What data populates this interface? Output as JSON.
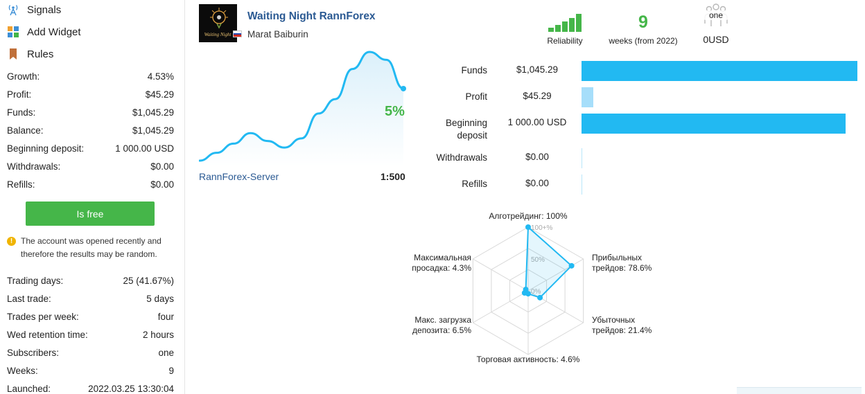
{
  "nav": [
    {
      "label": "Signals",
      "icon": "signal-antenna-icon"
    },
    {
      "label": "Add Widget",
      "icon": "widget-grid-icon"
    },
    {
      "label": "Rules",
      "icon": "bookmark-icon"
    }
  ],
  "stats_top": [
    {
      "label": "Growth:",
      "value": "4.53%"
    },
    {
      "label": "Profit:",
      "value": "$45.29"
    },
    {
      "label": "Funds:",
      "value": "$1,045.29"
    },
    {
      "label": "Balance:",
      "value": "$1,045.29"
    },
    {
      "label": "Beginning deposit:",
      "value": "1 000.00 USD"
    },
    {
      "label": "Withdrawals:",
      "value": "$0.00"
    },
    {
      "label": "Refills:",
      "value": "$0.00"
    }
  ],
  "free_button": "Is free",
  "warning": {
    "icon": "warning-icon",
    "text": "The account was opened recently and therefore the results may be random."
  },
  "stats_bottom": [
    {
      "label": "Trading days:",
      "value": "25 (41.67%)"
    },
    {
      "label": "Last trade:",
      "value": "5 days"
    },
    {
      "label": "Trades per week:",
      "value": "four"
    },
    {
      "label": "Wed retention time:",
      "value": "2 hours"
    },
    {
      "label": "Subscribers:",
      "value": "one"
    },
    {
      "label": "Weeks:",
      "value": "9"
    },
    {
      "label": "Launched:",
      "value": "2022.03.25 13:30:04"
    }
  ],
  "signal": {
    "title": "Waiting Night RannForex",
    "author": "Marat Baiburin",
    "avatar_text": "Waiting Night",
    "server": "RannForex-Server",
    "leverage": "1:500",
    "growth_label": "5%"
  },
  "metrics": {
    "reliability_label": "Reliability",
    "reliability_level": 5,
    "weeks_value": "9",
    "weeks_caption": "weeks (from 2022)",
    "subscribers_value": "one",
    "subscribers_caption": "0USD"
  },
  "growth_curve": [
    0,
    6,
    13,
    21,
    15,
    10,
    17,
    36,
    47,
    70,
    83,
    77,
    55
  ],
  "funds_bars": [
    {
      "label": "Funds",
      "value": "$1,045.29",
      "fraction": 1.0,
      "color": "#22b9f2"
    },
    {
      "label": "Profit",
      "value": "$45.29",
      "fraction": 0.043,
      "color": "#a6defa"
    },
    {
      "label": "Beginning deposit",
      "value": "1 000.00 USD",
      "fraction": 0.957,
      "color": "#22b9f2"
    },
    {
      "label": "Withdrawals",
      "value": "$0.00",
      "fraction": 0,
      "color": "#22b9f2"
    },
    {
      "label": "Refills",
      "value": "$0.00",
      "fraction": 0,
      "color": "#22b9f2"
    }
  ],
  "radar": {
    "grid_labels": [
      "100+%",
      "50%",
      "0%"
    ],
    "axes": [
      {
        "label": [
          "Алготрейдинг: 100%"
        ],
        "value": 100
      },
      {
        "label": [
          "Прибыльных",
          "трейдов: 78.6%"
        ],
        "value": 78.6
      },
      {
        "label": [
          "Убыточных",
          "трейдов: 21.4%"
        ],
        "value": 21.4
      },
      {
        "label": [
          "Торговая активность: 4.6%"
        ],
        "value": 4.6
      },
      {
        "label": [
          "Макс. загрузка",
          "депозита: 6.5%"
        ],
        "value": 6.5
      },
      {
        "label": [
          "Максимальная",
          "просадка: 4.3%"
        ],
        "value": 4.3
      }
    ],
    "color": "#22b9f2"
  },
  "colors": {
    "accent": "#22b9f2",
    "green": "#45b649",
    "link": "#2b5a93"
  }
}
